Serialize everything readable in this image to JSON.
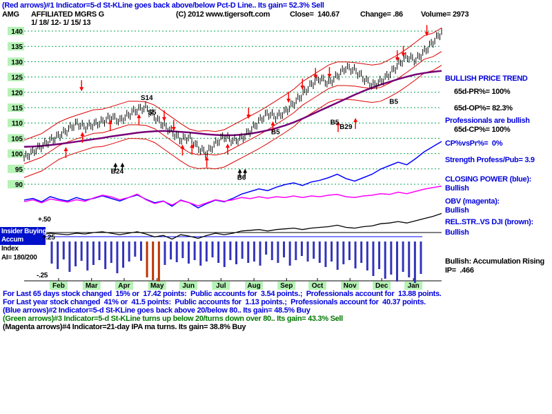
{
  "header": {
    "indicator_line": "(Red arrows)#1 Indicator=5-d St-KLine goes back above/below Pct-D Line.. Its gain= 52.3% Sell",
    "ticker": "AMG",
    "security_name": "AFFILIATED MGRS G",
    "copyright": "(C) 2012 www.tigersoft.com",
    "close": "Close=  140.67",
    "change": "Change= .86",
    "volume": "Volume= 2973",
    "date_range": "1/ 18/ 12- 1/ 15/ 13"
  },
  "left_panel": {
    "insider_line1": "Insider Buying",
    "insider_line2": "Accum",
    "index_label": "Index",
    "ai_value": "AI= 180/200",
    "scale_plus50": "+.50",
    "scale_plus25": "+.25",
    "scale_minus25": "-.25"
  },
  "right_panel": {
    "lines": [
      {
        "text": "BULLISH PRICE TREND"
      },
      {
        "text": "65d-PR%= 100%"
      },
      {
        "text": "65d-OP%= 82.3%"
      },
      {
        "text": "Professionals are bullish"
      },
      {
        "text": "65d-CP%= 100%"
      },
      {
        "text": "CP%vsPr%=  0%"
      },
      {
        "text": "Strength Profess/Pub= 3.9"
      },
      {
        "text": "CLOSING POWER (blue):"
      },
      {
        "text": "Bullish"
      },
      {
        "text": "OBV (magenta):"
      },
      {
        "text": "Bullish"
      },
      {
        "text": "REL.STR..VS DJI (brown):"
      },
      {
        "text": "Bullish"
      },
      {
        "text": "Bullish: Accumulation Rising"
      },
      {
        "text": "IP=  .466"
      }
    ]
  },
  "bottom": {
    "lines": [
      {
        "text": "For Last 65 days stock changed  15% or  17.42 points:  Public accounts for  3.54 points.;  Professionals account for  13.88 points."
      },
      {
        "text": "For Last year stock changed  41% or  41.5 points:  Public accounts for  1.13 points.;  Professionals account for  40.37 points."
      },
      {
        "text": "(Blue arrows)#2 Indicator=5-d St-KLine goes back above 20/below 80.. Its gain= 48.5% Buy"
      },
      {
        "text": "(Green arrows)#3 Indicator=5-d St-KLine turns up below 20/turns down over 80.. Its gain= 43.3% Sell"
      },
      {
        "text": "(Magenta arrows)#4 Indicator=21-day IPA ma turns. Its gain= 38.8% Buy"
      }
    ]
  },
  "chart_data": {
    "type": "line",
    "title": "AMG AFFILIATED MGRS G daily price with 65-day MA, price bands, Closing Power, OBV and Accumulation Index",
    "x_range": "1/ 18/ 12 - 1/ 15/ 13",
    "ylim": [
      90,
      140
    ],
    "yticks": [
      140,
      135,
      130,
      125,
      120,
      115,
      110,
      105,
      100,
      95,
      90
    ],
    "months": [
      {
        "label": "Feb",
        "f": 0.066
      },
      {
        "label": "Mar",
        "f": 0.145
      },
      {
        "label": "Apr",
        "f": 0.223
      },
      {
        "label": "May",
        "f": 0.302
      },
      {
        "label": "Jun",
        "f": 0.377
      },
      {
        "label": "Jul",
        "f": 0.455
      },
      {
        "label": "Aug",
        "f": 0.534
      },
      {
        "label": "Sep",
        "f": 0.612
      },
      {
        "label": "Oct",
        "f": 0.686
      },
      {
        "label": "Nov",
        "f": 0.764
      },
      {
        "label": "Dec",
        "f": 0.84
      },
      {
        "label": "Jan",
        "f": 0.916
      }
    ],
    "series": [
      {
        "name": "price",
        "values": [
          98.5,
          100,
          102,
          104.5,
          106.5,
          108,
          109.5,
          108,
          109.5,
          111,
          112.5,
          110.5,
          112,
          114,
          115.5,
          112.5,
          109.5,
          106.5,
          104,
          105.5,
          102.5,
          100.5,
          103,
          105,
          104,
          105.5,
          108,
          110.5,
          112.5,
          111.5,
          114,
          117,
          119.5,
          122,
          124,
          123,
          126,
          128.5,
          127,
          124,
          122,
          124,
          126.5,
          129,
          131,
          130,
          133.5,
          137,
          140
        ]
      },
      {
        "name": "ma_65day",
        "values": [
          102.2,
          102.3,
          102.5,
          102.8,
          103.1,
          103.5,
          103.9,
          104.3,
          104.7,
          105.1,
          105.6,
          106,
          106.4,
          106.8,
          107.1,
          107.3,
          107.4,
          107.3,
          107.1,
          106.9,
          106.6,
          106.3,
          106.1,
          106,
          106,
          106.2,
          106.5,
          107,
          107.6,
          108.3,
          109.2,
          110.2,
          111.4,
          112.7,
          114,
          115.3,
          116.6,
          117.9,
          119.2,
          120.4,
          121.5,
          122.5,
          123.4,
          124.3,
          125.1,
          125.8,
          126.3,
          126.7,
          127
        ]
      },
      {
        "name": "closing_power",
        "values": [
          20,
          22,
          18,
          24,
          21,
          19,
          23,
          20,
          22,
          25,
          22,
          19,
          23,
          26,
          21,
          17,
          19,
          13,
          20,
          17,
          11,
          16,
          20,
          18,
          22,
          27,
          30,
          33,
          31,
          35,
          38,
          40,
          37,
          41,
          43,
          46,
          50,
          45,
          42,
          46,
          50,
          56,
          60,
          64,
          61,
          68,
          76,
          82,
          88
        ]
      },
      {
        "name": "obv",
        "values": [
          25,
          30,
          22,
          32,
          28,
          24,
          30,
          26,
          35,
          42,
          38,
          30,
          36,
          45,
          30,
          20,
          26,
          16,
          28,
          22,
          14,
          22,
          30,
          26,
          30,
          36,
          33,
          38,
          34,
          38,
          36,
          40,
          36,
          40,
          38,
          42,
          44,
          38,
          36,
          40,
          42,
          46,
          44,
          50,
          46,
          52,
          58,
          62,
          66
        ]
      },
      {
        "name": "accumulation_index",
        "values": [
          0.3,
          0.32,
          0.31,
          0.33,
          0.32,
          0.31,
          0.33,
          0.32,
          0.34,
          0.35,
          0.33,
          0.31,
          0.33,
          0.35,
          0.32,
          0.28,
          0.3,
          0.25,
          0.31,
          0.29,
          0.26,
          0.3,
          0.33,
          0.31,
          0.33,
          0.36,
          0.37,
          0.38,
          0.36,
          0.38,
          0.39,
          0.4,
          0.38,
          0.4,
          0.41,
          0.42,
          0.44,
          0.41,
          0.4,
          0.42,
          0.43,
          0.46,
          0.47,
          0.49,
          0.47,
          0.5,
          0.53,
          0.56,
          0.6
        ]
      }
    ],
    "hist": {
      "heights": [
        32,
        40,
        26,
        44,
        36,
        28,
        42,
        34,
        27,
        40,
        31,
        46,
        38,
        29,
        22,
        28,
        52,
        56,
        58,
        34,
        26,
        30,
        24,
        32,
        27,
        35,
        29,
        23,
        31,
        37,
        27,
        33,
        25,
        31,
        29,
        35,
        19,
        27,
        31,
        23,
        35,
        27,
        21,
        29,
        25,
        31,
        37,
        29,
        41,
        33,
        27,
        39,
        31,
        42,
        50,
        40,
        54,
        48,
        58,
        44,
        52,
        60,
        47
      ],
      "red_indices": [
        16,
        17,
        18
      ]
    },
    "signals": {
      "sell": [
        {
          "i": 6.6,
          "p": 119
        },
        {
          "i": 16.1
        },
        {
          "i": 17.2
        },
        {
          "i": 25.8,
          "p": 110
        },
        {
          "i": 30.4
        },
        {
          "i": 32
        },
        {
          "i": 33.5
        },
        {
          "i": 35.1
        },
        {
          "i": 42.9
        },
        {
          "i": 43.6
        },
        {
          "i": 46.3,
          "p": 137
        }
      ],
      "buy": [
        {
          "i": 4.8,
          "p": 103.5
        },
        {
          "i": 6.7
        },
        {
          "i": 9.9
        },
        {
          "i": 13.2
        },
        {
          "i": 18.2
        },
        {
          "i": 19.3
        },
        {
          "i": 21
        },
        {
          "i": 23.4
        },
        {
          "i": 28.6
        },
        {
          "i": 36.1,
          "p": 112
        },
        {
          "i": 38.1,
          "p": 113
        }
      ],
      "black_buy": [
        {
          "i": 10.5,
          "p": 97.5
        },
        {
          "i": 11.3,
          "p": 97.5
        },
        {
          "i": 24.8,
          "p": 95.5
        },
        {
          "i": 25.4,
          "p": 95.5
        }
      ]
    },
    "labels": [
      {
        "t": "S14",
        "i": 14.1,
        "p": 117.5
      },
      {
        "t": "S5",
        "i": 14.7,
        "p": 112.8
      },
      {
        "t": "B24",
        "i": 10.7,
        "p": 93.5
      },
      {
        "t": "B6",
        "i": 25,
        "p": 91.5
      },
      {
        "t": "B5",
        "i": 28.9,
        "p": 106.3
      },
      {
        "t": "B5",
        "i": 35.7,
        "p": 109.5
      },
      {
        "t": "B29",
        "i": 37,
        "p": 108
      },
      {
        "t": "B5",
        "i": 42.5,
        "p": 116.2
      }
    ],
    "colors": {
      "grid": "#00a050",
      "axis_bg": "#b5f2b5",
      "band": "#dd0000",
      "ma": "#770077",
      "cp": "#0000ff",
      "obv": "#ff00ff",
      "sell": "#ff0000",
      "buy": "#ff0000",
      "hist": "#3333bb",
      "hist_red": "#bb3300"
    }
  }
}
